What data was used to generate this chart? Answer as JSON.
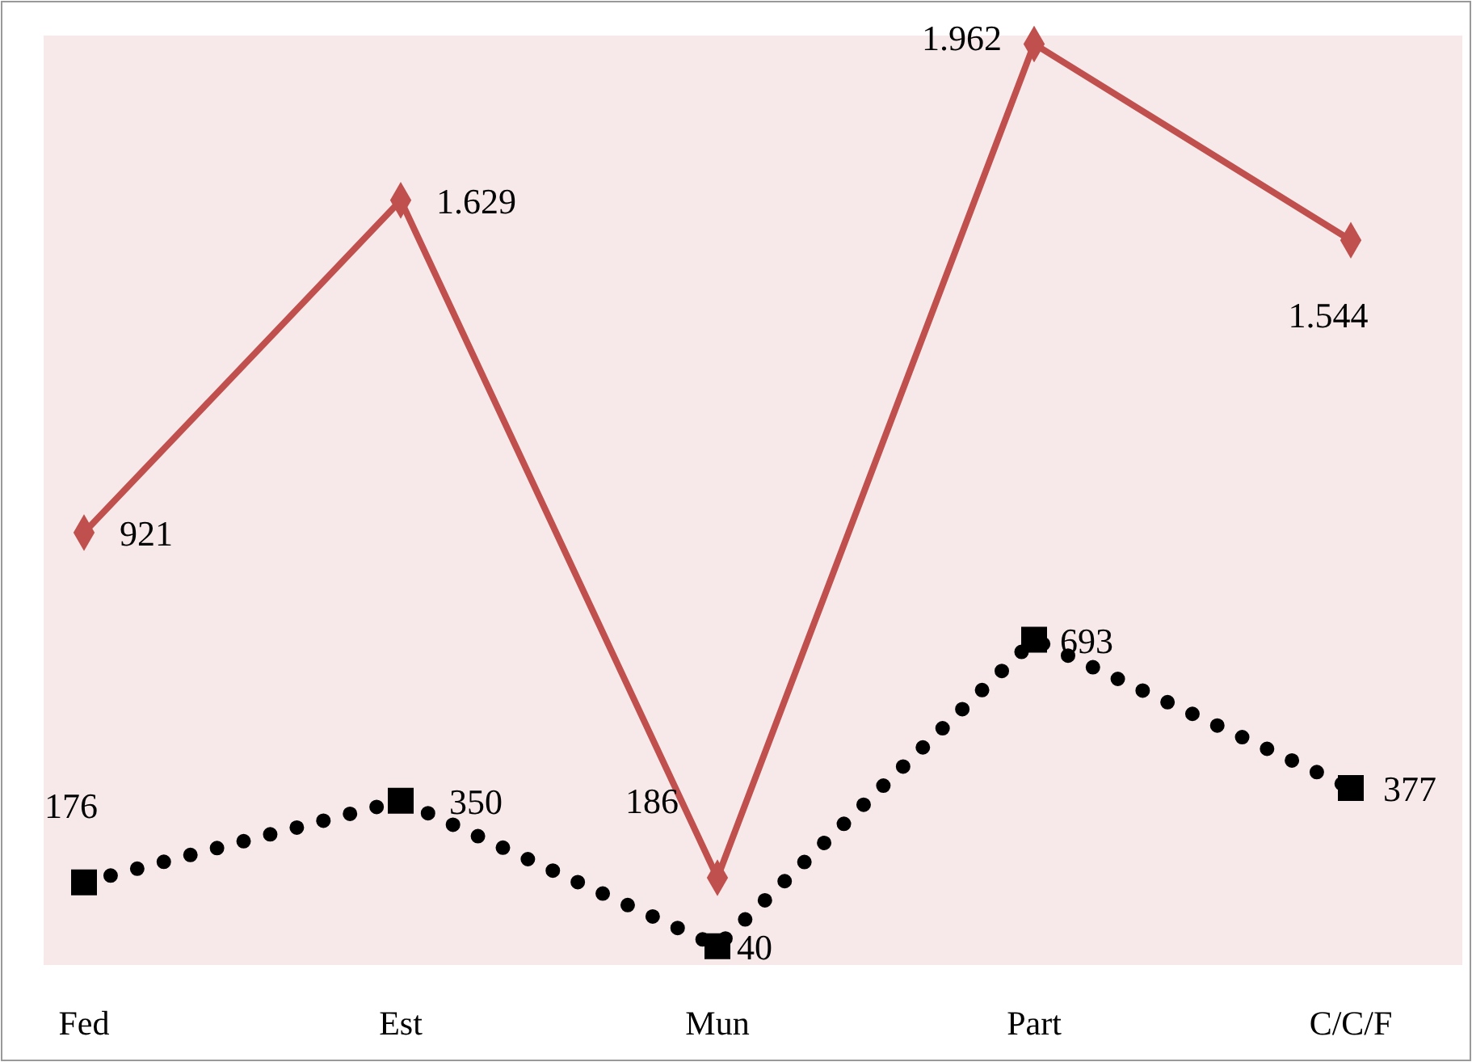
{
  "chart_data": {
    "type": "line",
    "categories": [
      "Fed",
      "Est",
      "Mun",
      "Part",
      "C/C/F"
    ],
    "ylim": [
      0,
      1980
    ],
    "tick_labels": "x",
    "series": [
      {
        "color": "#c0504d",
        "marker": "diamond",
        "line_style": "solid",
        "values": [
          921,
          1629,
          186,
          1962,
          1544
        ],
        "value_labels": [
          "921",
          "1.629",
          "186",
          "1.962",
          "1.544"
        ]
      },
      {
        "color": "#000000",
        "marker": "square",
        "line_style": "dotted",
        "values": [
          176,
          350,
          40,
          693,
          377
        ],
        "value_labels": [
          "176",
          "350",
          "40",
          "693",
          "377"
        ]
      }
    ]
  }
}
